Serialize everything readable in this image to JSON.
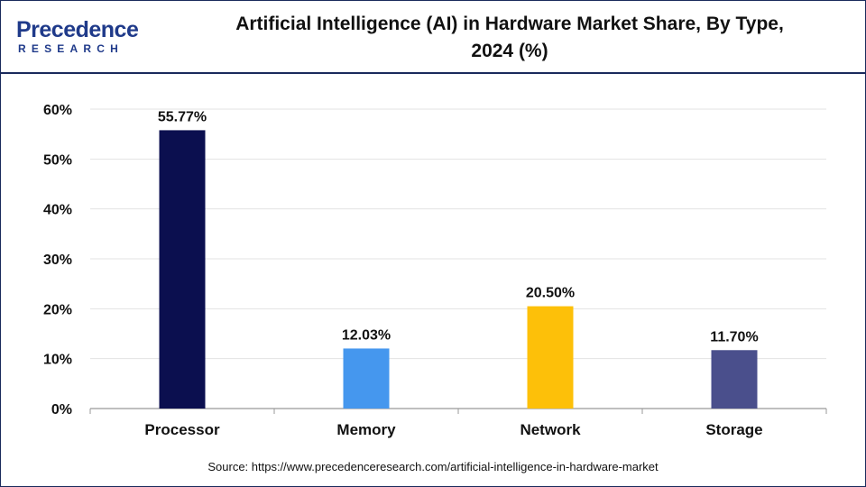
{
  "header": {
    "logo_main": "Precedence",
    "logo_sub": "RESEARCH",
    "title": "Artificial Intelligence (AI) in Hardware Market Share, By Type,\n2024 (%)"
  },
  "source": "Source: https://www.precedenceresearch.com/artificial-intelligence-in-hardware-market",
  "chart_data": {
    "type": "bar",
    "title": "Artificial Intelligence (AI) in Hardware Market Share, By Type, 2024 (%)",
    "xlabel": "",
    "ylabel": "",
    "categories": [
      "Processor",
      "Memory",
      "Network",
      "Storage"
    ],
    "values": [
      55.77,
      12.03,
      20.5,
      11.7
    ],
    "data_labels": [
      "55.77%",
      "12.03%",
      "20.50%",
      "11.70%"
    ],
    "bar_colors": [
      "#0b0f4f",
      "#4597ee",
      "#fdc009",
      "#4a4f8c"
    ],
    "ylim": [
      0,
      60
    ],
    "yticks": [
      0,
      10,
      20,
      30,
      40,
      50,
      60
    ],
    "ytick_labels": [
      "0%",
      "10%",
      "20%",
      "30%",
      "40%",
      "50%",
      "60%"
    ],
    "grid": true,
    "legend": "none"
  }
}
